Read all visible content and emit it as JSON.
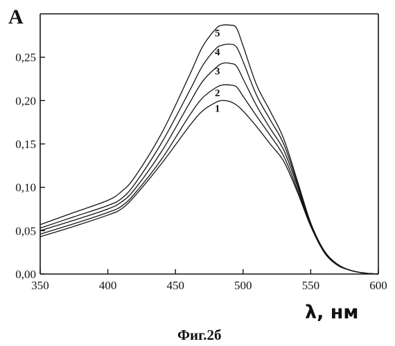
{
  "chart_data": {
    "type": "line",
    "ylabel": "A",
    "xlabel": "λ, нм",
    "caption": "Фиг.2б",
    "xlim": [
      350,
      600
    ],
    "ylim": [
      0,
      0.3
    ],
    "x_ticks": [
      350,
      400,
      450,
      500,
      550,
      600
    ],
    "y_ticks": [
      0,
      0.05,
      0.1,
      0.15,
      0.2,
      0.25
    ],
    "x_tick_labels": [
      "350",
      "400",
      "450",
      "500",
      "550",
      "600"
    ],
    "y_tick_labels": [
      "0,00",
      "0,05",
      "0,10",
      "0,15",
      "0,20",
      "0,25"
    ],
    "grid": false,
    "x": [
      350,
      375,
      400,
      410,
      420,
      440,
      460,
      470,
      480,
      485,
      490,
      495,
      500,
      510,
      520,
      530,
      540,
      550,
      560,
      570,
      580,
      590,
      600
    ],
    "series": [
      {
        "name": "1",
        "values": [
          0.043,
          0.055,
          0.068,
          0.075,
          0.09,
          0.128,
          0.17,
          0.188,
          0.198,
          0.2,
          0.199,
          0.195,
          0.188,
          0.17,
          0.15,
          0.13,
          0.095,
          0.055,
          0.025,
          0.01,
          0.004,
          0.001,
          0.0
        ]
      },
      {
        "name": "2",
        "values": [
          0.046,
          0.058,
          0.071,
          0.078,
          0.093,
          0.133,
          0.182,
          0.203,
          0.215,
          0.218,
          0.218,
          0.216,
          0.205,
          0.182,
          0.16,
          0.136,
          0.098,
          0.056,
          0.025,
          0.01,
          0.004,
          0.001,
          0.0
        ]
      },
      {
        "name": "3",
        "values": [
          0.05,
          0.062,
          0.075,
          0.083,
          0.098,
          0.142,
          0.196,
          0.222,
          0.238,
          0.243,
          0.243,
          0.24,
          0.225,
          0.194,
          0.168,
          0.143,
          0.102,
          0.057,
          0.026,
          0.011,
          0.004,
          0.001,
          0.0
        ]
      },
      {
        "name": "4",
        "values": [
          0.053,
          0.066,
          0.079,
          0.087,
          0.104,
          0.152,
          0.21,
          0.24,
          0.26,
          0.264,
          0.265,
          0.262,
          0.245,
          0.206,
          0.178,
          0.15,
          0.105,
          0.058,
          0.026,
          0.011,
          0.004,
          0.001,
          0.0
        ]
      },
      {
        "name": "5",
        "values": [
          0.057,
          0.071,
          0.085,
          0.095,
          0.112,
          0.163,
          0.228,
          0.262,
          0.283,
          0.287,
          0.287,
          0.284,
          0.263,
          0.218,
          0.188,
          0.156,
          0.108,
          0.059,
          0.027,
          0.011,
          0.004,
          0.001,
          0.0
        ]
      }
    ]
  }
}
